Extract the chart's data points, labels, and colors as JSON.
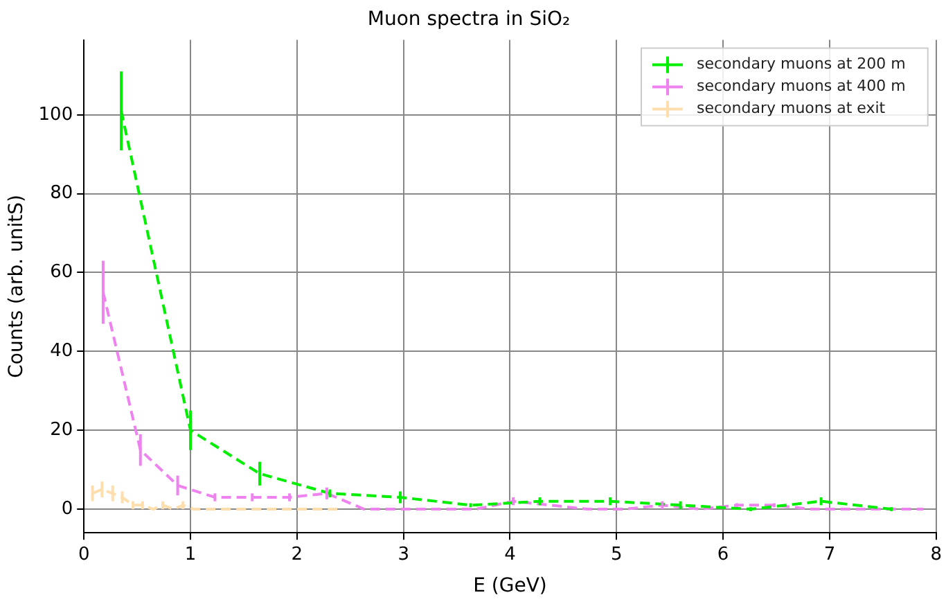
{
  "chart_data": {
    "type": "line",
    "title": "Muon spectra in SiO₂",
    "xlabel": "E (GeV)",
    "ylabel": "Counts (arb. unitS)",
    "xlim": [
      0,
      8
    ],
    "ylim": [
      -6,
      119
    ],
    "xticks": [
      0,
      1,
      2,
      3,
      4,
      5,
      6,
      7,
      8
    ],
    "yticks": [
      0,
      20,
      40,
      60,
      80,
      100
    ],
    "grid": true,
    "legend": "top right",
    "marker": "none",
    "line_style": "dashed",
    "series": [
      {
        "name": "secondary muons at 200 m",
        "color": "#00ee00",
        "x": [
          0.35,
          1.0,
          1.65,
          2.31,
          2.97,
          3.63,
          4.28,
          4.94,
          5.6,
          6.26,
          6.92,
          7.58
        ],
        "values": [
          101,
          20,
          9,
          4,
          3,
          1,
          2,
          2,
          1,
          0,
          2,
          0
        ],
        "errors": [
          10,
          5,
          3,
          1,
          1.5,
          0.5,
          1,
          1,
          1,
          0.5,
          1,
          0.5
        ]
      },
      {
        "name": "secondary muons at 400 m",
        "color": "#ee82ee",
        "x": [
          0.18,
          0.53,
          0.88,
          1.23,
          1.58,
          1.93,
          2.28,
          2.63,
          2.98,
          3.33,
          3.68,
          4.03,
          4.38,
          4.73,
          5.08,
          5.43,
          5.78,
          6.13,
          6.48,
          6.83,
          7.18,
          7.53,
          7.88
        ],
        "values": [
          55,
          15,
          6,
          3,
          3,
          3,
          4,
          0,
          0,
          0,
          0,
          2,
          1,
          0,
          0,
          1,
          0,
          1,
          1,
          0,
          0,
          0,
          0
        ],
        "errors": [
          8,
          4,
          2.5,
          1,
          1,
          1,
          1.5,
          null,
          null,
          null,
          null,
          1,
          null,
          null,
          null,
          1,
          null,
          0.5,
          0.5,
          null,
          null,
          null,
          null
        ]
      },
      {
        "name": "secondary muons at exit",
        "color": "#ffdead",
        "x": [
          0.08,
          0.17,
          0.27,
          0.36,
          0.46,
          0.55,
          0.65,
          0.74,
          0.84,
          0.93,
          1.03,
          1.3,
          1.7,
          2.0,
          2.4
        ],
        "values": [
          4,
          5,
          4,
          3,
          1,
          1,
          0,
          1,
          0,
          1,
          0,
          0,
          0,
          0,
          0
        ],
        "errors": [
          2,
          2,
          2,
          1.5,
          1,
          1,
          null,
          1,
          null,
          1,
          null,
          null,
          null,
          null,
          null
        ]
      }
    ]
  }
}
